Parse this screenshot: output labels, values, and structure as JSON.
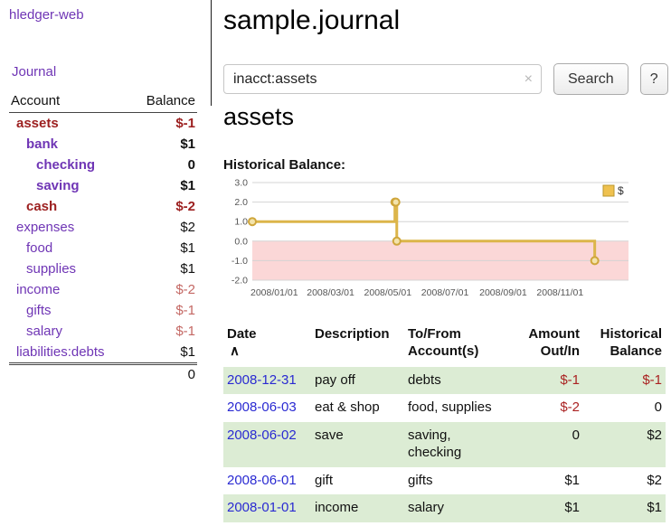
{
  "colors": {
    "purple": "#6f35b5",
    "neg_strong": "#9c1f1f",
    "neg_soft": "#c46864",
    "neg_table": "#aa2222",
    "date_blue": "#2a2ad2",
    "row_green": "#dcecd4"
  },
  "sidebar": {
    "app_title": "hledger-web",
    "journal_label": "Journal",
    "accounts_table": {
      "headers": {
        "account": "Account",
        "balance": "Balance"
      },
      "rows": [
        {
          "name": "assets",
          "indent": 0,
          "bold": true,
          "name_color": "red",
          "balance": "$-1",
          "balance_color": "red"
        },
        {
          "name": "bank",
          "indent": 1,
          "bold": true,
          "name_color": "purple",
          "balance": "$1",
          "balance_color": "black"
        },
        {
          "name": "checking",
          "indent": 2,
          "bold": true,
          "name_color": "purple",
          "balance": "0",
          "balance_color": "black"
        },
        {
          "name": "saving",
          "indent": 2,
          "bold": true,
          "name_color": "purple",
          "balance": "$1",
          "balance_color": "black"
        },
        {
          "name": "cash",
          "indent": 1,
          "bold": true,
          "name_color": "red",
          "balance": "$-2",
          "balance_color": "red"
        },
        {
          "name": "expenses",
          "indent": 0,
          "bold": false,
          "name_color": "purple",
          "balance": "$2",
          "balance_color": "black"
        },
        {
          "name": "food",
          "indent": 1,
          "bold": false,
          "name_color": "purple",
          "balance": "$1",
          "balance_color": "black"
        },
        {
          "name": "supplies",
          "indent": 1,
          "bold": false,
          "name_color": "purple",
          "balance": "$1",
          "balance_color": "black"
        },
        {
          "name": "income",
          "indent": 0,
          "bold": false,
          "name_color": "purple",
          "balance": "$-2",
          "balance_color": "softred"
        },
        {
          "name": "gifts",
          "indent": 1,
          "bold": false,
          "name_color": "purple",
          "balance": "$-1",
          "balance_color": "softred"
        },
        {
          "name": "salary",
          "indent": 1,
          "bold": false,
          "name_color": "purple",
          "balance": "$-1",
          "balance_color": "softred"
        },
        {
          "name": "liabilities:debts",
          "indent": 0,
          "bold": false,
          "name_color": "purple",
          "balance": "$1",
          "balance_color": "black"
        }
      ],
      "total": "0"
    }
  },
  "main": {
    "title": "sample.journal",
    "search": {
      "value": "inacct:assets",
      "clear_icon": "×",
      "button_label": "Search",
      "help_label": "?"
    },
    "account_heading": "assets",
    "register_table": {
      "headers": {
        "date": "Date",
        "sort_icon": "∧",
        "description": "Description",
        "accounts_line1": "To/From",
        "accounts_line2": "Account(s)",
        "amount_line1": "Amount",
        "amount_line2": "Out/In",
        "balance_line1": "Historical",
        "balance_line2": "Balance"
      },
      "rows": [
        {
          "date": "2008-12-31",
          "description": "pay off",
          "accounts": "debts",
          "amount": "$-1",
          "amount_negative": true,
          "balance": "$-1",
          "balance_negative": true,
          "shaded": true
        },
        {
          "date": "2008-06-03",
          "description": "eat & shop",
          "accounts": "food, supplies",
          "amount": "$-2",
          "amount_negative": true,
          "balance": "0",
          "balance_negative": false,
          "shaded": false
        },
        {
          "date": "2008-06-02",
          "description": "save",
          "accounts": "saving,\nchecking",
          "amount": "0",
          "amount_negative": false,
          "balance": "$2",
          "balance_negative": false,
          "shaded": true
        },
        {
          "date": "2008-06-01",
          "description": "gift",
          "accounts": "gifts",
          "amount": "$1",
          "amount_negative": false,
          "balance": "$2",
          "balance_negative": false,
          "shaded": false
        },
        {
          "date": "2008-01-01",
          "description": "income",
          "accounts": "salary",
          "amount": "$1",
          "amount_negative": false,
          "balance": "$1",
          "balance_negative": false,
          "shaded": true
        }
      ]
    }
  },
  "chart_data": {
    "type": "line",
    "step": true,
    "title": "Historical Balance:",
    "series": [
      {
        "name": "$",
        "color": "#dcb54a",
        "points": [
          [
            "2008-01-01",
            1
          ],
          [
            "2008-06-01",
            2
          ],
          [
            "2008-06-02",
            2
          ],
          [
            "2008-06-03",
            0
          ],
          [
            "2008-12-31",
            -1
          ]
        ]
      }
    ],
    "x_range": [
      "2008-01-01",
      "2009-02-05"
    ],
    "ylim": [
      -2,
      3
    ],
    "yticks": [
      3,
      2,
      1,
      0,
      -1,
      -2
    ],
    "xtick_labels": [
      "2008/01/01",
      "2008/03/01",
      "2008/05/01",
      "2008/07/01",
      "2008/09/01",
      "2008/11/01"
    ],
    "legend": {
      "position": "top-right",
      "label": "$",
      "swatch_fill": "#efc14f",
      "swatch_stroke": "#b9962e"
    },
    "grid": true,
    "marker_fill": "#f3e3ab",
    "marker_stroke": "#cfa63b",
    "negative_region_color": "#fbd7d7",
    "axis_text_color": "#555"
  }
}
